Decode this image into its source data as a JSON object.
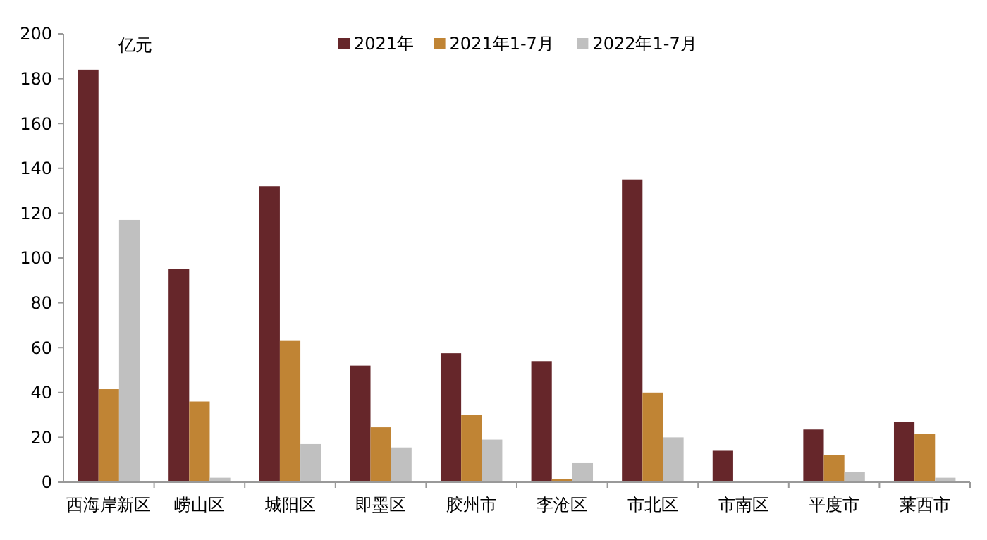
{
  "chart_data": {
    "type": "bar",
    "categories": [
      "西海岸新区",
      "崂山区",
      "城阳区",
      "即墨区",
      "胶州市",
      "李沧区",
      "市北区",
      "市南区",
      "平度市",
      "莱西市"
    ],
    "series": [
      {
        "name": "2021年",
        "color": "#66262a",
        "values": [
          184,
          95,
          132,
          52,
          57.5,
          54,
          135,
          14,
          23.5,
          27
        ]
      },
      {
        "name": "2021年1-7月",
        "color": "#c08434",
        "values": [
          41.5,
          36,
          63,
          24.5,
          30,
          1.5,
          40,
          0.3,
          12,
          21.5
        ]
      },
      {
        "name": "2022年1-7月",
        "color": "#c0c0c0",
        "values": [
          117,
          2,
          17,
          15.5,
          19,
          8.5,
          20,
          0,
          4.5,
          2
        ]
      }
    ],
    "ylim": [
      0,
      200
    ],
    "yticks": [
      0,
      20,
      40,
      60,
      80,
      100,
      120,
      140,
      160,
      180,
      200
    ],
    "grid": false,
    "legend": "top",
    "annotations": [
      "亿元"
    ]
  }
}
